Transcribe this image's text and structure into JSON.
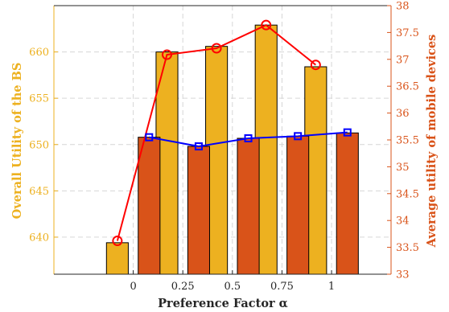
{
  "chart_data": {
    "type": "bar",
    "xlabel": "Preference Factor α",
    "ylabel_left": "Overall Utility of the BS",
    "ylabel_right": "Average utility of mobile devices",
    "categories": [
      "0",
      "0.25",
      "0.5",
      "0.75",
      "1"
    ],
    "y_left": {
      "lim": [
        636,
        665
      ],
      "ticks": [
        640,
        645,
        650,
        655,
        660
      ]
    },
    "y_right": {
      "lim": [
        33,
        38
      ],
      "ticks": [
        33,
        33.5,
        34,
        34.5,
        35,
        35.5,
        36,
        36.5,
        37,
        37.5,
        38
      ]
    },
    "bars_left": {
      "axis": "left",
      "color": "#EDB120",
      "values": [
        639.4,
        660.0,
        660.6,
        662.9,
        658.4
      ]
    },
    "bars_right": {
      "axis": "right",
      "color": "#D95319",
      "values": [
        35.55,
        35.38,
        35.53,
        35.57,
        35.63
      ]
    },
    "line_left": {
      "axis": "left",
      "color": "#FF0000",
      "marker": "circle",
      "values": [
        639.6,
        659.7,
        660.4,
        662.9,
        658.6
      ]
    },
    "line_right": {
      "axis": "right",
      "color": "#0000FF",
      "marker": "square",
      "values": [
        35.55,
        35.38,
        35.53,
        35.57,
        35.64
      ]
    },
    "grid": true,
    "colors": {
      "left_axis": "#EDB120",
      "right_axis": "#D95319"
    }
  }
}
